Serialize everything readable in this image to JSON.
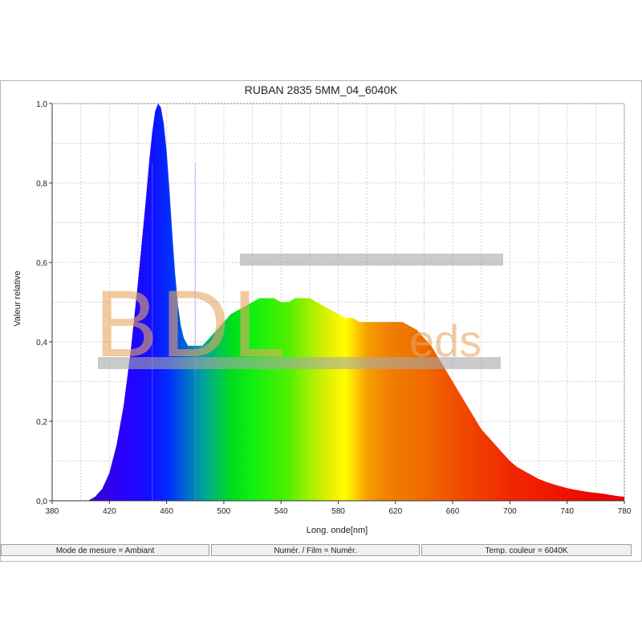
{
  "chart_data": {
    "type": "area",
    "title": "RUBAN 2835 5MM_04_6040K",
    "xlabel": "Long. onde[nm]",
    "ylabel": "Valeur relative",
    "xlim": [
      380,
      780
    ],
    "ylim": [
      0,
      1.0
    ],
    "x_ticks": [
      "380",
      "420",
      "460",
      "500",
      "540",
      "580",
      "620",
      "660",
      "700",
      "740",
      "780"
    ],
    "y_ticks": [
      "0,0",
      "0,2",
      "0,4",
      "0,6",
      "0,8",
      "1,0"
    ],
    "grid": true,
    "fill": "visible spectrum gradient",
    "x": [
      405,
      410,
      415,
      420,
      425,
      430,
      435,
      440,
      445,
      448,
      450,
      452,
      454,
      456,
      458,
      460,
      462,
      464,
      466,
      468,
      470,
      472,
      475,
      478,
      480,
      485,
      490,
      495,
      500,
      505,
      510,
      515,
      520,
      525,
      530,
      535,
      540,
      545,
      550,
      555,
      560,
      565,
      570,
      575,
      580,
      585,
      590,
      595,
      600,
      605,
      610,
      615,
      620,
      625,
      630,
      635,
      640,
      645,
      650,
      655,
      660,
      665,
      670,
      675,
      680,
      685,
      690,
      695,
      700,
      705,
      710,
      715,
      720,
      725,
      730,
      735,
      740,
      745,
      750,
      755,
      760,
      765,
      770,
      775,
      780
    ],
    "y": [
      0.0,
      0.01,
      0.03,
      0.07,
      0.14,
      0.24,
      0.38,
      0.55,
      0.74,
      0.86,
      0.93,
      0.98,
      1.0,
      0.99,
      0.95,
      0.88,
      0.78,
      0.67,
      0.57,
      0.49,
      0.44,
      0.41,
      0.39,
      0.39,
      0.39,
      0.39,
      0.41,
      0.43,
      0.45,
      0.47,
      0.48,
      0.49,
      0.5,
      0.51,
      0.51,
      0.51,
      0.5,
      0.5,
      0.51,
      0.51,
      0.51,
      0.5,
      0.49,
      0.48,
      0.47,
      0.46,
      0.46,
      0.45,
      0.45,
      0.45,
      0.45,
      0.45,
      0.45,
      0.45,
      0.44,
      0.43,
      0.41,
      0.39,
      0.36,
      0.33,
      0.3,
      0.27,
      0.24,
      0.21,
      0.18,
      0.16,
      0.14,
      0.12,
      0.1,
      0.085,
      0.075,
      0.065,
      0.055,
      0.048,
      0.042,
      0.037,
      0.032,
      0.028,
      0.025,
      0.022,
      0.02,
      0.018,
      0.015,
      0.012,
      0.01
    ]
  },
  "watermark": {
    "text_big": "BDL",
    "text_small": "eds",
    "color": "#e8a766"
  },
  "status_bar": {
    "mode": "Mode de mesure = Ambiant",
    "film": "Numér. / Film = Numér.",
    "temp": "Temp. couleur = 6040K"
  }
}
